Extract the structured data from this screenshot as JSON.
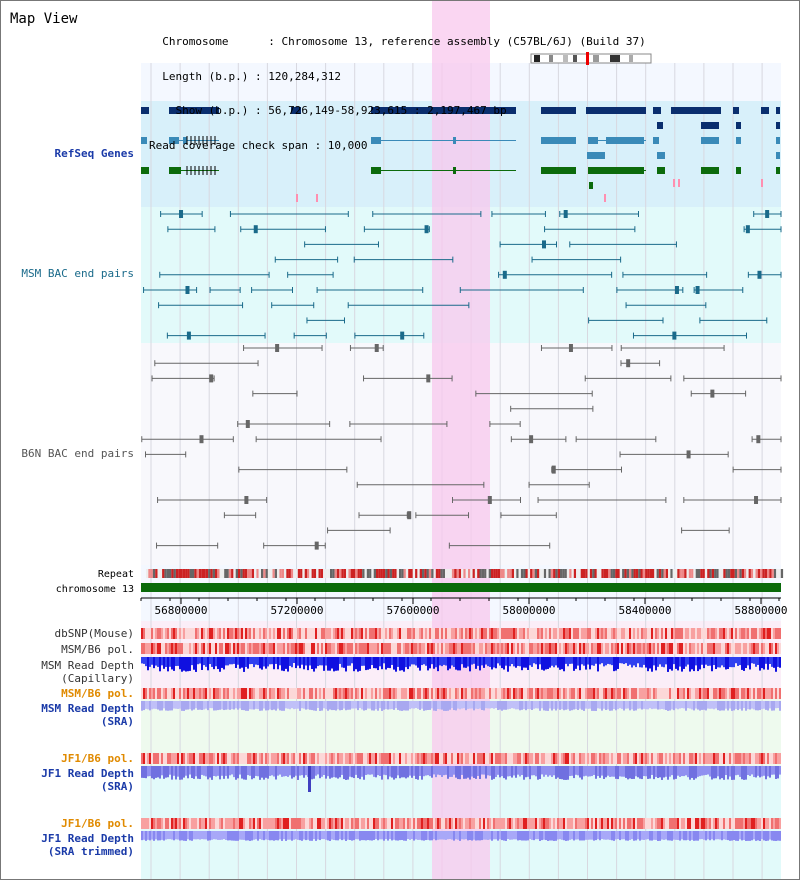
{
  "header": {
    "title": "Map View",
    "info_lines": [
      "  Chromosome      : Chromosome 13, reference assembly (C57BL/6J) (Build 37)",
      "  Length (b.p.) : 120,284,312",
      "    Show (b.p.) : 56,726,149-58,923,615 : 2,197,467 bp",
      "Read coverage check span : 10,000"
    ]
  },
  "tracks": {
    "refseq_label": "RefSeq Genes",
    "msm_bac_label": "MSM BAC end pairs",
    "b6n_bac_label": "B6N BAC end pairs",
    "repeat_label": "Repeat",
    "chromosome_label": "chromosome 13",
    "dbsnp_label": "dbSNP(Mouse)",
    "msm_b6_pol_label": "MSM/B6 pol.",
    "msm_read_depth_cap_label": "MSM Read Depth\n(Capillary)",
    "msm_b6_pol2_label": "MSM/B6 pol.",
    "msm_read_depth_sra_label": "MSM Read Depth\n(SRA)",
    "jf1_b6_pol_label": "JF1/B6 pol.",
    "jf1_read_depth_sra_label": "JF1 Read Depth\n(SRA)",
    "jf1_b6_pol2_label": "JF1/B6 pol.",
    "jf1_read_depth_trim_label": "JF1 Read Depth\n(SRA trimmed)"
  },
  "axis": {
    "ticks": [
      "56800000",
      "57200000",
      "57600000",
      "58000000",
      "58400000",
      "58800000"
    ]
  },
  "colors": {
    "refseq_dark": "#0a2e6e",
    "refseq_mid": "#3a8ab8",
    "refseq_green": "#0c6b0c",
    "msm_pair": "#1a6a8a",
    "b6n_pair": "#666666",
    "chromosome_bar": "#0a6a0a",
    "highlight": "#f8c8ee",
    "label_blue": "#1a3aa8",
    "label_teal": "#1a6a8a",
    "label_orange": "#e08a00",
    "label_gray": "#555555"
  }
}
